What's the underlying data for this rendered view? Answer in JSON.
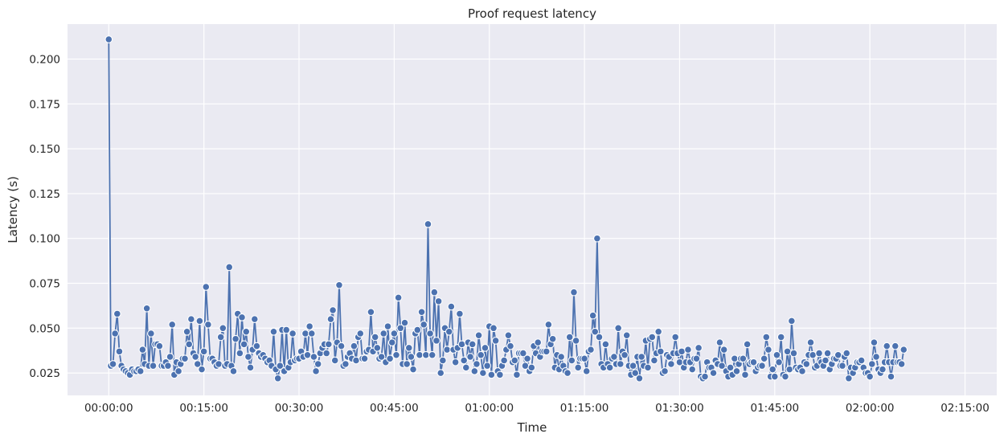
{
  "chart_data": {
    "type": "line",
    "title": "Proof request latency",
    "xlabel": "Time",
    "ylabel": "Latency (s)",
    "x_unit": "seconds",
    "xlim_seconds": [
      -390,
      8400
    ],
    "ylim": [
      0.0125,
      0.2195
    ],
    "x_ticks": [
      {
        "seconds": 0,
        "label": "00:00:00"
      },
      {
        "seconds": 900,
        "label": "00:15:00"
      },
      {
        "seconds": 1800,
        "label": "00:30:00"
      },
      {
        "seconds": 2700,
        "label": "00:45:00"
      },
      {
        "seconds": 3600,
        "label": "01:00:00"
      },
      {
        "seconds": 4500,
        "label": "01:15:00"
      },
      {
        "seconds": 5400,
        "label": "01:30:00"
      },
      {
        "seconds": 6300,
        "label": "01:45:00"
      },
      {
        "seconds": 7200,
        "label": "02:00:00"
      },
      {
        "seconds": 8100,
        "label": "02:15:00"
      }
    ],
    "y_ticks": [
      {
        "value": 0.025,
        "label": "0.025"
      },
      {
        "value": 0.05,
        "label": "0.050"
      },
      {
        "value": 0.075,
        "label": "0.075"
      },
      {
        "value": 0.1,
        "label": "0.100"
      },
      {
        "value": 0.125,
        "label": "0.125"
      },
      {
        "value": 0.15,
        "label": "0.150"
      },
      {
        "value": 0.175,
        "label": "0.175"
      },
      {
        "value": 0.2,
        "label": "0.200"
      }
    ],
    "grid": true,
    "series_color": "#4c72b0",
    "background_color": "#eaeaf2",
    "series": [
      {
        "x_start_seconds": 0,
        "x_step_seconds": 20,
        "values": [
          0.211,
          0.029,
          0.03,
          0.047,
          0.058,
          0.037,
          0.029,
          0.027,
          0.026,
          0.025,
          0.024,
          0.027,
          0.026,
          0.026,
          0.027,
          0.026,
          0.038,
          0.03,
          0.061,
          0.029,
          0.047,
          0.029,
          0.041,
          0.041,
          0.04,
          0.029,
          0.029,
          0.031,
          0.029,
          0.034,
          0.052,
          0.024,
          0.031,
          0.026,
          0.03,
          0.033,
          0.033,
          0.048,
          0.041,
          0.055,
          0.036,
          0.034,
          0.03,
          0.054,
          0.027,
          0.037,
          0.073,
          0.052,
          0.033,
          0.033,
          0.031,
          0.029,
          0.03,
          0.045,
          0.05,
          0.029,
          0.03,
          0.084,
          0.029,
          0.026,
          0.044,
          0.058,
          0.036,
          0.056,
          0.041,
          0.048,
          0.034,
          0.028,
          0.038,
          0.055,
          0.04,
          0.036,
          0.034,
          0.035,
          0.033,
          0.031,
          0.032,
          0.029,
          0.048,
          0.027,
          0.022,
          0.029,
          0.049,
          0.026,
          0.049,
          0.028,
          0.031,
          0.047,
          0.032,
          0.033,
          0.033,
          0.037,
          0.034,
          0.047,
          0.035,
          0.051,
          0.047,
          0.034,
          0.026,
          0.03,
          0.036,
          0.039,
          0.041,
          0.036,
          0.041,
          0.055,
          0.06,
          0.032,
          0.042,
          0.074,
          0.04,
          0.029,
          0.03,
          0.034,
          0.036,
          0.033,
          0.04,
          0.032,
          0.045,
          0.047,
          0.033,
          0.033,
          0.037,
          0.038,
          0.059,
          0.037,
          0.045,
          0.039,
          0.033,
          0.034,
          0.047,
          0.031,
          0.051,
          0.033,
          0.042,
          0.047,
          0.035,
          0.067,
          0.05,
          0.03,
          0.053,
          0.03,
          0.039,
          0.034,
          0.027,
          0.047,
          0.049,
          0.035,
          0.059,
          0.052,
          0.035,
          0.108,
          0.047,
          0.035,
          0.07,
          0.043,
          0.065,
          0.025,
          0.032,
          0.05,
          0.038,
          0.048,
          0.062,
          0.038,
          0.031,
          0.039,
          0.058,
          0.041,
          0.032,
          0.028,
          0.042,
          0.034,
          0.041,
          0.026,
          0.03,
          0.046,
          0.035,
          0.025,
          0.039,
          0.029,
          0.051,
          0.024,
          0.05,
          0.043,
          0.026,
          0.024,
          0.029,
          0.032,
          0.038,
          0.046,
          0.04,
          0.031,
          0.032,
          0.024,
          0.036,
          0.036,
          0.036,
          0.029,
          0.033,
          0.026,
          0.028,
          0.04,
          0.036,
          0.042,
          0.034,
          0.037,
          0.037,
          0.037,
          0.052,
          0.041,
          0.044,
          0.028,
          0.035,
          0.027,
          0.034,
          0.029,
          0.026,
          0.025,
          0.045,
          0.032,
          0.07,
          0.043,
          0.028,
          0.033,
          0.033,
          0.033,
          0.026,
          0.037,
          0.038,
          0.057,
          0.048,
          0.1,
          0.045,
          0.03,
          0.028,
          0.041,
          0.03,
          0.028,
          0.033,
          0.034,
          0.03,
          0.05,
          0.03,
          0.037,
          0.035,
          0.046,
          0.029,
          0.024,
          0.029,
          0.025,
          0.034,
          0.022,
          0.034,
          0.029,
          0.043,
          0.028,
          0.044,
          0.045,
          0.032,
          0.036,
          0.048,
          0.037,
          0.025,
          0.026,
          0.035,
          0.034,
          0.03,
          0.036,
          0.045,
          0.036,
          0.031,
          0.037,
          0.028,
          0.031,
          0.038,
          0.031,
          0.027,
          0.033,
          0.033,
          0.039,
          0.023,
          0.022,
          0.023,
          0.031,
          0.028,
          0.028,
          0.025,
          0.032,
          0.03,
          0.042,
          0.029,
          0.038,
          0.026,
          0.023,
          0.028,
          0.024,
          0.033,
          0.026,
          0.03,
          0.033,
          0.033,
          0.024,
          0.041,
          0.03,
          0.031,
          0.031,
          0.026,
          0.028,
          0.029,
          0.029,
          0.033,
          0.045,
          0.038,
          0.023,
          0.027,
          0.023,
          0.035,
          0.031,
          0.045,
          0.024,
          0.023,
          0.037,
          0.027,
          0.054,
          0.036,
          0.028,
          0.027,
          0.028,
          0.026,
          0.031,
          0.03,
          0.035,
          0.042,
          0.035,
          0.028,
          0.029,
          0.036,
          0.031,
          0.029,
          0.032,
          0.036,
          0.027,
          0.03,
          0.033,
          0.033,
          0.035,
          0.029,
          0.029,
          0.034,
          0.036,
          0.022,
          0.028,
          0.025,
          0.028,
          0.031,
          0.031,
          0.032,
          0.028,
          0.025,
          0.025,
          0.023,
          0.03,
          0.042,
          0.034,
          0.027,
          0.025,
          0.027,
          0.031,
          0.04,
          0.031,
          0.023,
          0.031,
          0.04,
          0.031,
          0.031,
          0.03,
          0.038
        ]
      }
    ]
  }
}
